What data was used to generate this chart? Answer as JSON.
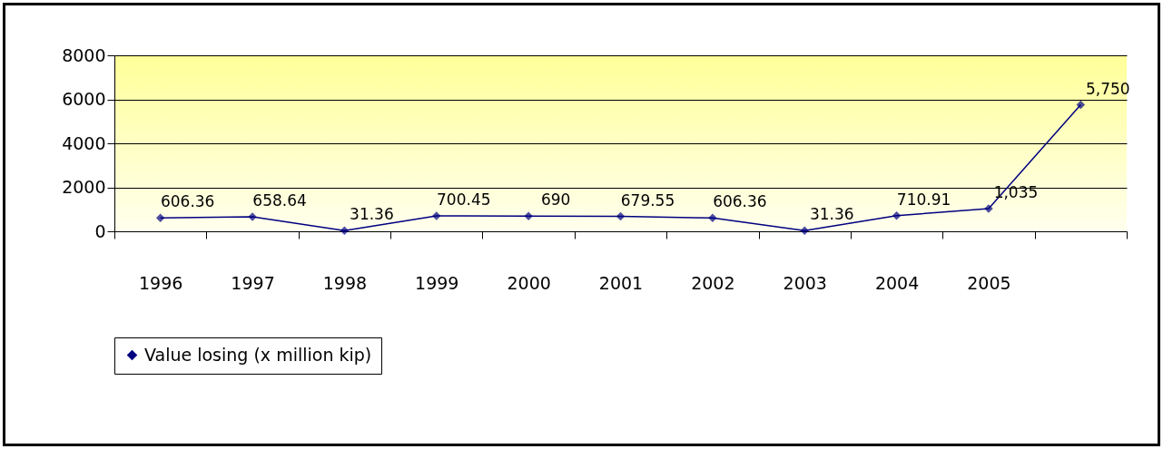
{
  "chart_data": {
    "type": "line",
    "categories": [
      "1996",
      "1997",
      "1998",
      "1999",
      "2000",
      "2001",
      "2002",
      "2003",
      "2004",
      "2005",
      null
    ],
    "series": [
      {
        "name": "Value losing (x million kip)",
        "color": "#000080",
        "values": [
          606.36,
          658.64,
          31.36,
          700.45,
          690,
          679.55,
          606.36,
          31.36,
          710.91,
          1035,
          5750
        ],
        "value_labels": [
          "606.36",
          "658.64",
          "31.36",
          "700.45",
          "690",
          "679.55",
          "606.36",
          "31.36",
          "710.91",
          "1,035",
          "5,750"
        ]
      }
    ],
    "ylim": [
      0,
      8000
    ],
    "yticks": [
      0,
      2000,
      4000,
      6000,
      8000
    ],
    "grid": "y",
    "legend": "bottom",
    "marker": "diamond",
    "line_style": "solid"
  }
}
